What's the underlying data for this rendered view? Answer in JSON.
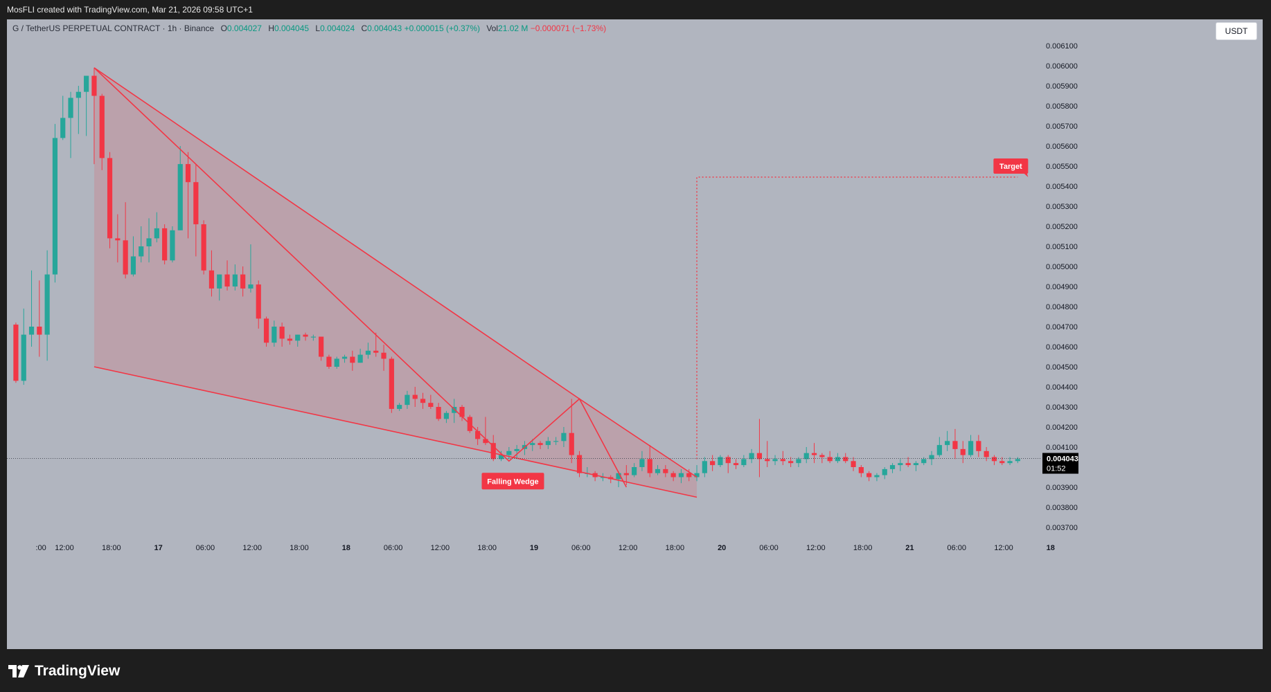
{
  "header": {
    "caption": "MosFLI created with TradingView.com, Mar 21, 2026 09:58 UTC+1"
  },
  "legend": {
    "symbol": "G / TetherUS PERPETUAL CONTRACT · 1h · Binance",
    "o_label": "O",
    "o_value": "0.004027",
    "h_label": "H",
    "h_value": "0.004045",
    "l_label": "L",
    "l_value": "0.004024",
    "c_label": "C",
    "c_value": "0.004043",
    "change": "+0.000015 (+0.37%)",
    "vol_label": "Vol",
    "vol_value": "21.02 M",
    "vol_change": "−0.000071 (−1.73%)"
  },
  "currency_button": "USDT",
  "footer": {
    "brand": "TradingView"
  },
  "colors": {
    "up": "#26a69a",
    "down": "#f23645",
    "pattern_line": "#f23645",
    "pattern_fill": "rgba(242,54,69,0.16)",
    "grid": "none",
    "background": "#b1b5bf"
  },
  "chart_data": {
    "type": "candlestick",
    "symbol": "G / TetherUS PERPETUAL CONTRACT",
    "interval": "1h",
    "ylim": [
      0.00365,
      0.00615
    ],
    "y_ticks": [
      "0.003700",
      "0.003800",
      "0.003900",
      "0.004000",
      "0.004100",
      "0.004200",
      "0.004300",
      "0.004400",
      "0.004500",
      "0.004600",
      "0.004700",
      "0.004800",
      "0.004900",
      "0.005000",
      "0.005100",
      "0.005200",
      "0.005300",
      "0.005400",
      "0.005500",
      "0.005600",
      "0.005700",
      "0.005800",
      "0.005900",
      "0.006000",
      "0.006100"
    ],
    "y_tick_values": [
      0.0037,
      0.0038,
      0.0039,
      0.004,
      0.0041,
      0.0042,
      0.0043,
      0.0044,
      0.0045,
      0.0046,
      0.0047,
      0.0048,
      0.0049,
      0.005,
      0.0051,
      0.0052,
      0.0053,
      0.0054,
      0.0055,
      0.0056,
      0.0057,
      0.0058,
      0.0059,
      0.006,
      0.0061
    ],
    "x_ticks": [
      {
        "label": ":00",
        "hour": -3
      },
      {
        "label": "12:00",
        "hour": 0
      },
      {
        "label": "18:00",
        "hour": 6
      },
      {
        "label": "17",
        "hour": 12
      },
      {
        "label": "06:00",
        "hour": 18
      },
      {
        "label": "12:00",
        "hour": 24
      },
      {
        "label": "18:00",
        "hour": 30
      },
      {
        "label": "18",
        "hour": 36
      },
      {
        "label": "06:00",
        "hour": 42
      },
      {
        "label": "12:00",
        "hour": 48
      },
      {
        "label": "18:00",
        "hour": 54
      },
      {
        "label": "19",
        "hour": 60
      },
      {
        "label": "06:00",
        "hour": 66
      },
      {
        "label": "12:00",
        "hour": 72
      },
      {
        "label": "18:00",
        "hour": 78
      },
      {
        "label": "20",
        "hour": 84
      },
      {
        "label": "06:00",
        "hour": 90
      },
      {
        "label": "12:00",
        "hour": 96
      },
      {
        "label": "18:00",
        "hour": 102
      },
      {
        "label": "21",
        "hour": 108
      },
      {
        "label": "06:00",
        "hour": 114
      },
      {
        "label": "12:00",
        "hour": 120
      },
      {
        "label": "18",
        "hour": 126
      }
    ],
    "current_price": "0.004043",
    "countdown": "01:52",
    "last_price_value": 0.004043,
    "candles": [
      [
        -6.2,
        0.00471,
        0.00472,
        0.00442,
        0.00443
      ],
      [
        -5.2,
        0.00443,
        0.00479,
        0.00441,
        0.00466
      ],
      [
        -4.2,
        0.00466,
        0.00498,
        0.0046,
        0.0047
      ],
      [
        -3.2,
        0.0047,
        0.00493,
        0.00455,
        0.00466
      ],
      [
        -2.2,
        0.00466,
        0.00508,
        0.00453,
        0.00496
      ],
      [
        -1.2,
        0.00496,
        0.00571,
        0.00492,
        0.00564
      ],
      [
        -0.2,
        0.00564,
        0.00585,
        0.00563,
        0.00574
      ],
      [
        0.8,
        0.00574,
        0.00587,
        0.00554,
        0.00584
      ],
      [
        1.8,
        0.00584,
        0.0059,
        0.00566,
        0.00587
      ],
      [
        2.8,
        0.00587,
        0.00595,
        0.00565,
        0.00595
      ],
      [
        3.8,
        0.00595,
        0.00599,
        0.00551,
        0.00585
      ],
      [
        4.8,
        0.00585,
        0.00586,
        0.00548,
        0.00554
      ],
      [
        5.8,
        0.00554,
        0.00557,
        0.00509,
        0.00514
      ],
      [
        6.8,
        0.00514,
        0.00526,
        0.00502,
        0.00513
      ],
      [
        7.8,
        0.00513,
        0.00532,
        0.00494,
        0.00496
      ],
      [
        8.8,
        0.00496,
        0.00515,
        0.00495,
        0.00505
      ],
      [
        9.8,
        0.00505,
        0.0052,
        0.00502,
        0.0051
      ],
      [
        10.8,
        0.0051,
        0.00524,
        0.00502,
        0.00514
      ],
      [
        11.8,
        0.00514,
        0.00527,
        0.00512,
        0.00519
      ],
      [
        12.8,
        0.00519,
        0.00521,
        0.00501,
        0.00503
      ],
      [
        13.8,
        0.00503,
        0.0052,
        0.00502,
        0.00518
      ],
      [
        14.8,
        0.00518,
        0.0056,
        0.00518,
        0.00551
      ],
      [
        15.8,
        0.00551,
        0.00557,
        0.00514,
        0.00542
      ],
      [
        16.8,
        0.00542,
        0.00551,
        0.00505,
        0.00521
      ],
      [
        17.8,
        0.00521,
        0.00523,
        0.00496,
        0.00498
      ],
      [
        18.8,
        0.00498,
        0.00508,
        0.00485,
        0.00489
      ],
      [
        19.8,
        0.00489,
        0.00496,
        0.00483,
        0.00496
      ],
      [
        20.8,
        0.00496,
        0.00503,
        0.00488,
        0.0049
      ],
      [
        21.8,
        0.0049,
        0.00501,
        0.00488,
        0.00496
      ],
      [
        22.8,
        0.00496,
        0.005,
        0.00485,
        0.00489
      ],
      [
        23.8,
        0.00489,
        0.00511,
        0.00487,
        0.00491
      ],
      [
        24.8,
        0.00491,
        0.00493,
        0.00469,
        0.00474
      ],
      [
        25.8,
        0.00474,
        0.00475,
        0.0046,
        0.00462
      ],
      [
        26.8,
        0.00462,
        0.00473,
        0.0046,
        0.0047
      ],
      [
        27.8,
        0.0047,
        0.00472,
        0.0046,
        0.00464
      ],
      [
        28.8,
        0.00464,
        0.00466,
        0.00461,
        0.00463
      ],
      [
        29.8,
        0.00463,
        0.00466,
        0.0046,
        0.00466
      ],
      [
        30.8,
        0.00466,
        0.00467,
        0.00463,
        0.00465
      ],
      [
        31.8,
        0.00465,
        0.00466,
        0.00463,
        0.00465
      ],
      [
        32.8,
        0.00465,
        0.00465,
        0.00453,
        0.00455
      ],
      [
        33.8,
        0.00455,
        0.00456,
        0.00449,
        0.0045
      ],
      [
        34.8,
        0.0045,
        0.00455,
        0.00449,
        0.00454
      ],
      [
        35.8,
        0.00454,
        0.00456,
        0.00452,
        0.00455
      ],
      [
        36.8,
        0.00455,
        0.00458,
        0.00448,
        0.00452
      ],
      [
        37.8,
        0.00452,
        0.00459,
        0.00452,
        0.00456
      ],
      [
        38.8,
        0.00456,
        0.00462,
        0.00454,
        0.00458
      ],
      [
        39.8,
        0.00458,
        0.00467,
        0.00455,
        0.00457
      ],
      [
        40.8,
        0.00457,
        0.00461,
        0.00448,
        0.00454
      ],
      [
        41.8,
        0.00454,
        0.00455,
        0.00427,
        0.00429
      ],
      [
        42.8,
        0.00429,
        0.00432,
        0.00428,
        0.00431
      ],
      [
        43.8,
        0.00431,
        0.00438,
        0.00429,
        0.00436
      ],
      [
        44.8,
        0.00436,
        0.0044,
        0.0043,
        0.00434
      ],
      [
        45.8,
        0.00434,
        0.00437,
        0.00429,
        0.00432
      ],
      [
        46.8,
        0.00432,
        0.00436,
        0.00429,
        0.0043
      ],
      [
        47.8,
        0.0043,
        0.00432,
        0.00423,
        0.00424
      ],
      [
        48.8,
        0.00424,
        0.00428,
        0.00422,
        0.00427
      ],
      [
        49.8,
        0.00427,
        0.00434,
        0.00422,
        0.0043
      ],
      [
        50.8,
        0.0043,
        0.00431,
        0.00423,
        0.00425
      ],
      [
        51.8,
        0.00425,
        0.00426,
        0.00417,
        0.00418
      ],
      [
        52.8,
        0.00418,
        0.0042,
        0.00411,
        0.00414
      ],
      [
        53.8,
        0.00414,
        0.00425,
        0.00411,
        0.00412
      ],
      [
        54.8,
        0.00412,
        0.00416,
        0.00403,
        0.00404
      ],
      [
        55.8,
        0.00404,
        0.00408,
        0.00403,
        0.00406
      ],
      [
        56.8,
        0.00406,
        0.0041,
        0.00404,
        0.00408
      ],
      [
        57.8,
        0.00408,
        0.00411,
        0.00404,
        0.00409
      ],
      [
        58.8,
        0.00409,
        0.00413,
        0.00406,
        0.00411
      ],
      [
        59.8,
        0.00411,
        0.00414,
        0.00408,
        0.00412
      ],
      [
        60.8,
        0.00412,
        0.00413,
        0.00409,
        0.00411
      ],
      [
        61.8,
        0.00411,
        0.00415,
        0.00409,
        0.00413
      ],
      [
        62.8,
        0.00413,
        0.00415,
        0.00411,
        0.00413
      ],
      [
        63.8,
        0.00413,
        0.0042,
        0.0041,
        0.00417
      ],
      [
        64.8,
        0.00417,
        0.00434,
        0.00402,
        0.00406
      ],
      [
        65.8,
        0.00406,
        0.00408,
        0.00395,
        0.00397
      ],
      [
        66.8,
        0.00397,
        0.004,
        0.00395,
        0.00397
      ],
      [
        67.8,
        0.00397,
        0.00398,
        0.00393,
        0.00395
      ],
      [
        68.8,
        0.00395,
        0.00397,
        0.00393,
        0.00395
      ],
      [
        69.8,
        0.00395,
        0.00396,
        0.00392,
        0.00394
      ],
      [
        70.8,
        0.00394,
        0.00398,
        0.0039,
        0.00397
      ],
      [
        71.8,
        0.00397,
        0.00401,
        0.00391,
        0.00396
      ],
      [
        72.8,
        0.00396,
        0.00402,
        0.00395,
        0.004
      ],
      [
        73.8,
        0.004,
        0.00408,
        0.00398,
        0.00404
      ],
      [
        74.8,
        0.00404,
        0.00411,
        0.00395,
        0.00397
      ],
      [
        75.8,
        0.00397,
        0.00401,
        0.00396,
        0.00399
      ],
      [
        76.8,
        0.00399,
        0.00401,
        0.00395,
        0.00397
      ],
      [
        77.8,
        0.00397,
        0.00398,
        0.00393,
        0.00395
      ],
      [
        78.8,
        0.00395,
        0.00399,
        0.00392,
        0.00397
      ],
      [
        79.8,
        0.00397,
        0.00399,
        0.00393,
        0.00395
      ],
      [
        80.8,
        0.00395,
        0.00401,
        0.00393,
        0.00397
      ],
      [
        81.8,
        0.00397,
        0.00405,
        0.00395,
        0.00403
      ],
      [
        82.8,
        0.00403,
        0.00406,
        0.00398,
        0.00401
      ],
      [
        83.8,
        0.00401,
        0.00406,
        0.004,
        0.00405
      ],
      [
        84.8,
        0.00405,
        0.00406,
        0.00397,
        0.00402
      ],
      [
        85.8,
        0.00402,
        0.00404,
        0.00399,
        0.00401
      ],
      [
        86.8,
        0.00401,
        0.00406,
        0.004,
        0.00404
      ],
      [
        87.8,
        0.00404,
        0.00409,
        0.00402,
        0.00407
      ],
      [
        88.8,
        0.00407,
        0.00424,
        0.00395,
        0.00404
      ],
      [
        89.8,
        0.00404,
        0.00413,
        0.004,
        0.00403
      ],
      [
        90.8,
        0.00403,
        0.00406,
        0.00401,
        0.00404
      ],
      [
        91.8,
        0.00404,
        0.00408,
        0.00401,
        0.00403
      ],
      [
        92.8,
        0.00403,
        0.00405,
        0.004,
        0.00402
      ],
      [
        93.8,
        0.00402,
        0.00405,
        0.004,
        0.00404
      ],
      [
        94.8,
        0.00404,
        0.0041,
        0.00402,
        0.00407
      ],
      [
        95.8,
        0.00407,
        0.00412,
        0.00402,
        0.00406
      ],
      [
        96.8,
        0.00406,
        0.00407,
        0.00402,
        0.00405
      ],
      [
        97.8,
        0.00405,
        0.00408,
        0.00402,
        0.00403
      ],
      [
        98.8,
        0.00403,
        0.00407,
        0.00402,
        0.00405
      ],
      [
        99.8,
        0.00405,
        0.00407,
        0.00402,
        0.00403
      ],
      [
        100.8,
        0.00403,
        0.00405,
        0.00398,
        0.004
      ],
      [
        101.8,
        0.004,
        0.00401,
        0.00395,
        0.00397
      ],
      [
        102.8,
        0.00397,
        0.00398,
        0.00393,
        0.00395
      ],
      [
        103.8,
        0.00395,
        0.00397,
        0.00393,
        0.00396
      ],
      [
        104.8,
        0.00396,
        0.004,
        0.00394,
        0.00399
      ],
      [
        105.8,
        0.00399,
        0.00402,
        0.00397,
        0.00401
      ],
      [
        106.8,
        0.00401,
        0.00404,
        0.00398,
        0.00402
      ],
      [
        107.8,
        0.00402,
        0.00405,
        0.004,
        0.00401
      ],
      [
        108.8,
        0.00401,
        0.00403,
        0.00398,
        0.00402
      ],
      [
        109.8,
        0.00402,
        0.00405,
        0.00401,
        0.00404
      ],
      [
        110.8,
        0.00404,
        0.00408,
        0.00401,
        0.00406
      ],
      [
        111.8,
        0.00406,
        0.00415,
        0.00405,
        0.00411
      ],
      [
        112.8,
        0.00411,
        0.00418,
        0.00408,
        0.00413
      ],
      [
        113.8,
        0.00413,
        0.00419,
        0.00404,
        0.00409
      ],
      [
        114.8,
        0.00409,
        0.00413,
        0.00402,
        0.00406
      ],
      [
        115.8,
        0.00406,
        0.00416,
        0.00405,
        0.00413
      ],
      [
        116.8,
        0.00413,
        0.00416,
        0.00405,
        0.00408
      ],
      [
        117.8,
        0.00408,
        0.0041,
        0.00403,
        0.00405
      ],
      [
        118.8,
        0.00405,
        0.00406,
        0.00401,
        0.00403
      ],
      [
        119.8,
        0.00403,
        0.00405,
        0.00401,
        0.00402
      ],
      [
        120.8,
        0.00402,
        0.00405,
        0.00401,
        0.00403
      ],
      [
        121.8,
        0.00403,
        0.00405,
        0.00402,
        0.00404
      ]
    ],
    "pattern": {
      "label": "Falling Wedge",
      "upper_line": [
        [
          3.8,
          0.00599
        ],
        [
          65.8,
          0.00434
        ],
        [
          80.8,
          0.00395
        ]
      ],
      "lower_line": [
        [
          3.8,
          0.0045
        ],
        [
          80.8,
          0.00385
        ]
      ],
      "inner_zigzag": [
        [
          3.8,
          0.00599
        ],
        [
          56.8,
          0.00403
        ],
        [
          65.8,
          0.00434
        ],
        [
          71.8,
          0.0039
        ]
      ],
      "label_anchor": [
        57.3,
        0.00393
      ]
    },
    "target": {
      "label": "Target",
      "price": 0.005445,
      "start_hour": 80.8,
      "start_price": 0.00404,
      "end_hour": 121.8
    }
  }
}
